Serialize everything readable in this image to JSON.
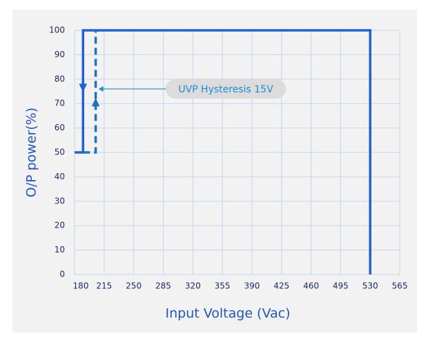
{
  "chart_data": {
    "type": "line",
    "xlabel": "Input Voltage (Vac)",
    "ylabel": "O/P power(%)",
    "xlim": [
      180,
      565
    ],
    "xticks": [
      180,
      215,
      250,
      285,
      320,
      355,
      390,
      425,
      460,
      495,
      530,
      565
    ],
    "ylim": [
      0,
      100
    ],
    "yticks": [
      0,
      10,
      20,
      30,
      40,
      50,
      60,
      70,
      80,
      90,
      100
    ],
    "grid": true,
    "series": [
      {
        "color": "#2160d8",
        "x": [
          180,
          190,
          190,
          530,
          530
        ],
        "values": [
          50,
          50,
          100,
          100,
          0
        ]
      },
      {
        "color": "#1a73c9",
        "dashed": true,
        "x": [
          190,
          205,
          205
        ],
        "values": [
          50,
          50,
          100
        ]
      }
    ],
    "annotation": "UVP Hysteresis 15V"
  }
}
